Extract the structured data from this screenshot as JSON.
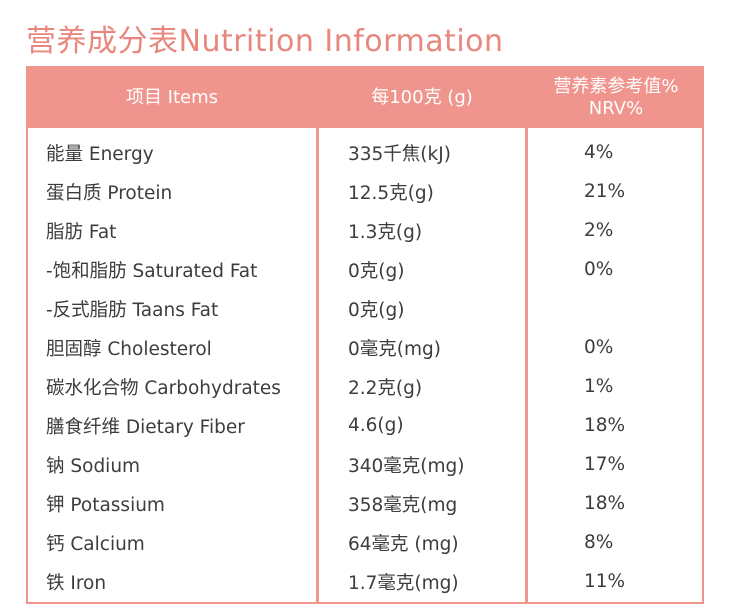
{
  "title": "营养成分表Nutrition Information",
  "headers": {
    "item": "项目 Items",
    "per100": "每100克 (g)",
    "nrv_line1": "营养素参考值%",
    "nrv_line2": "NRV%"
  },
  "rows": [
    {
      "item": "能量 Energy",
      "amount": "335千焦(kJ)",
      "nrv": "4%"
    },
    {
      "item": "蛋白质 Protein",
      "amount": "12.5克(g)",
      "nrv": "21%"
    },
    {
      "item": "脂肪 Fat",
      "amount": "1.3克(g)",
      "nrv": "2%"
    },
    {
      "item": "-饱和脂肪 Saturated Fat",
      "amount": "0克(g)",
      "nrv": "0%"
    },
    {
      "item": "-反式脂肪 Taans Fat",
      "amount": "0克(g)",
      "nrv": ""
    },
    {
      "item": "胆固醇 Cholesterol",
      "amount": "0毫克(mg)",
      "nrv": "0%"
    },
    {
      "item": "碳水化合物 Carbohydrates",
      "amount": "2.2克(g)",
      "nrv": "1%"
    },
    {
      "item": "膳食纤维 Dietary Fiber",
      "amount": "4.6(g)",
      "nrv": "18%"
    },
    {
      "item": "钠 Sodium",
      "amount": "340毫克(mg)",
      "nrv": "17%"
    },
    {
      "item": "钾 Potassium",
      "amount": "358毫克(mg",
      "nrv": "18%"
    },
    {
      "item": "钙 Calcium",
      "amount": "64毫克 (mg)",
      "nrv": "8%"
    },
    {
      "item": "铁 Iron",
      "amount": "1.7毫克(mg)",
      "nrv": "11%"
    }
  ],
  "colors": {
    "accent": "#ef958d",
    "title": "#e8877e",
    "text": "#3d3d3d"
  }
}
